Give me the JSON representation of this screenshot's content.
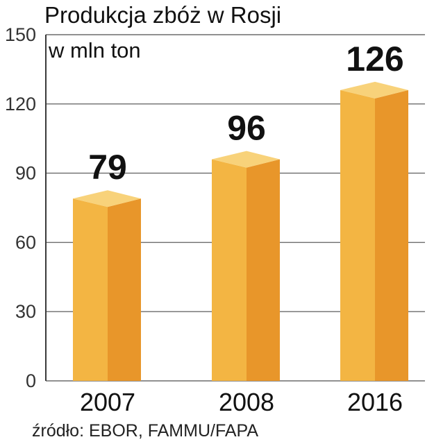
{
  "chart_data": {
    "type": "bar",
    "title": "Produkcja zbóż w Rosji",
    "subtitle": "w mln ton",
    "categories": [
      "2007",
      "2008",
      "2016"
    ],
    "values": [
      79,
      96,
      126
    ],
    "ylim": [
      0,
      150
    ],
    "yticks": [
      0,
      30,
      60,
      90,
      120,
      150
    ],
    "ytick_labels": [
      "0",
      "30",
      "60",
      "90",
      "120",
      "150"
    ],
    "grid": true,
    "legend": "none",
    "source": "źródło: EBOR, FAMMU/FAPA",
    "colors": {
      "front": "#F3B543",
      "side": "#E8962A",
      "top": "#F8D27A"
    }
  }
}
